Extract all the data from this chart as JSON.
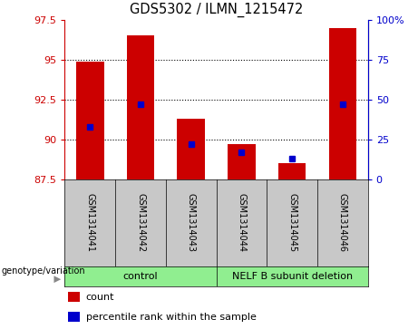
{
  "title": "GDS5302 / ILMN_1215472",
  "samples": [
    "GSM1314041",
    "GSM1314042",
    "GSM1314043",
    "GSM1314044",
    "GSM1314045",
    "GSM1314046"
  ],
  "count_values": [
    94.9,
    96.5,
    91.3,
    89.7,
    88.5,
    97.0
  ],
  "percentile_values": [
    33,
    47,
    22,
    17,
    13,
    47
  ],
  "ylim_left": [
    87.5,
    97.5
  ],
  "ylim_right": [
    0,
    100
  ],
  "yticks_left": [
    87.5,
    90.0,
    92.5,
    95.0,
    97.5
  ],
  "yticks_right": [
    0,
    25,
    50,
    75,
    100
  ],
  "ytick_labels_left": [
    "87.5",
    "90",
    "92.5",
    "95",
    "97.5"
  ],
  "ytick_labels_right": [
    "0",
    "25",
    "50",
    "75",
    "100%"
  ],
  "groups": [
    {
      "label": "control",
      "samples": [
        0,
        1,
        2
      ],
      "color": "#90EE90"
    },
    {
      "label": "NELF B subunit deletion",
      "samples": [
        3,
        4,
        5
      ],
      "color": "#90EE90"
    }
  ],
  "bar_color_red": "#CC0000",
  "bar_color_blue": "#0000CC",
  "bar_width": 0.55,
  "base_value": 87.5,
  "background_color": "#FFFFFF",
  "plot_bg_color": "#FFFFFF",
  "label_area_color": "#C8C8C8",
  "group_area_color": "#90EE90",
  "legend_count_label": "count",
  "legend_pct_label": "percentile rank within the sample",
  "left_axis_color": "#CC0000",
  "right_axis_color": "#0000CC",
  "genotype_label": "genotype/variation"
}
